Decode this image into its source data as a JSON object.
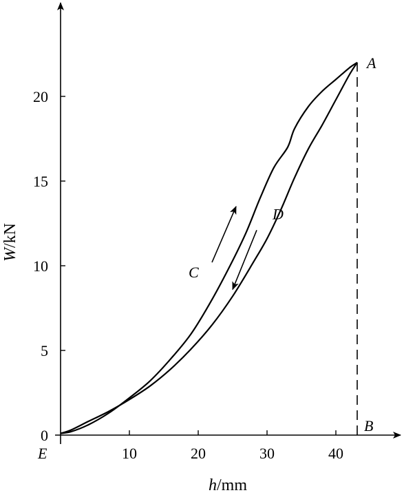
{
  "chart_data": {
    "type": "line",
    "title": "",
    "xlabel": {
      "var": "h",
      "unit": "/mm"
    },
    "ylabel": {
      "var": "W",
      "unit": "/kN"
    },
    "xlim": [
      -1.5,
      49
    ],
    "ylim": [
      0,
      24
    ],
    "x_ticks": [
      {
        "value": 10,
        "label": "10"
      },
      {
        "value": 20,
        "label": "20"
      },
      {
        "value": 30,
        "label": "30"
      },
      {
        "value": 40,
        "label": "40"
      }
    ],
    "y_ticks": [
      {
        "value": 0,
        "label": "0"
      },
      {
        "value": 5,
        "label": "5"
      },
      {
        "value": 10,
        "label": "10"
      },
      {
        "value": 15,
        "label": "15"
      },
      {
        "value": 20,
        "label": "20"
      }
    ],
    "grid": false,
    "series": [
      {
        "x": [
          0,
          1.5,
          4,
          7,
          10,
          13,
          16,
          19,
          22,
          25,
          28,
          30,
          32,
          34,
          36,
          38,
          40,
          42,
          43.1
        ],
        "y": [
          0.1,
          0.3,
          0.8,
          1.4,
          2.1,
          2.9,
          3.9,
          5.1,
          6.5,
          8.2,
          10.2,
          11.6,
          13.3,
          15.2,
          16.9,
          18.3,
          19.8,
          21.3,
          22.0
        ]
      },
      {
        "x": [
          43.1,
          42,
          40,
          38,
          36,
          34,
          33,
          31,
          29,
          27,
          25,
          22,
          19,
          16,
          13,
          10,
          7,
          4,
          1.5,
          0
        ],
        "y": [
          22.0,
          21.7,
          21.0,
          20.3,
          19.4,
          18.1,
          17.0,
          15.8,
          14.0,
          12.0,
          10.3,
          8.0,
          6.0,
          4.5,
          3.2,
          2.2,
          1.3,
          0.6,
          0.2,
          0.1
        ]
      }
    ],
    "annotations": [
      {
        "label": "A",
        "x": 43.1,
        "y": 22.0
      },
      {
        "label": "B",
        "x": 43.1,
        "y": 0
      },
      {
        "label": "C",
        "x": 22,
        "y": 9.8
      },
      {
        "label": "D",
        "x": 30,
        "y": 12.5
      },
      {
        "label": "E",
        "x": -1.5,
        "y": 0
      }
    ],
    "arrows": [
      {
        "from": [
          22,
          10.2
        ],
        "to": [
          25.5,
          13.5
        ]
      },
      {
        "from": [
          28.5,
          12.1
        ],
        "to": [
          25,
          8.6
        ]
      }
    ],
    "dashed_line": {
      "from": [
        43.1,
        0
      ],
      "to": [
        43.1,
        22.0
      ]
    }
  }
}
